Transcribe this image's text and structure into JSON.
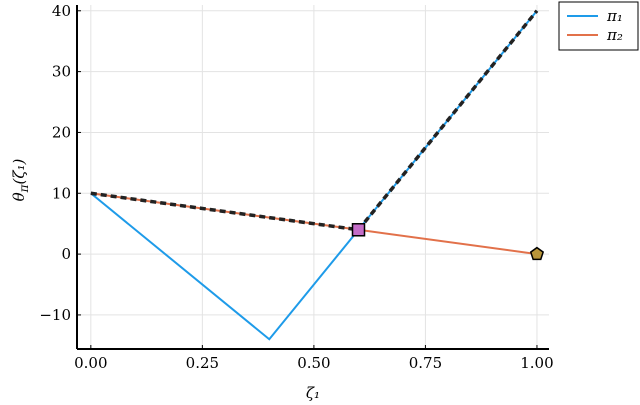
{
  "chart_data": {
    "type": "line",
    "xlabel": "ζ₁",
    "ylabel": {
      "base": "θ",
      "sub": "π",
      "arg": "(ζ₁)"
    },
    "xlim": [
      -0.031,
      1.027
    ],
    "ylim": [
      -15.6,
      40.95
    ],
    "xticks": [
      {
        "value": 0,
        "label": "0.00"
      },
      {
        "value": 0.25,
        "label": "0.25"
      },
      {
        "value": 0.5,
        "label": "0.50"
      },
      {
        "value": 0.75,
        "label": "0.75"
      },
      {
        "value": 1,
        "label": "1.00"
      }
    ],
    "yticks": [
      {
        "value": -10,
        "label": "−10"
      },
      0,
      10,
      20,
      30,
      40
    ],
    "grid": true,
    "legend": "top-right",
    "series": [
      {
        "name": "π₁",
        "color": "#1e9be9",
        "x": [
          0,
          0.4,
          0.6,
          1.0
        ],
        "values": [
          10,
          -14,
          4,
          40
        ]
      },
      {
        "name": "π₂",
        "color": "#e2714a",
        "x": [
          0,
          0.6,
          1.0
        ],
        "values": [
          10,
          4,
          0
        ]
      }
    ],
    "envelope": {
      "color": "#222222",
      "x": [
        0,
        0.6,
        1.0
      ],
      "values": [
        10,
        4,
        40
      ]
    },
    "markers": [
      {
        "shape": "square",
        "color": "#c46dc8",
        "x": 0.6,
        "y": 4
      },
      {
        "shape": "pentagon",
        "color": "#b8953a",
        "x": 1.0,
        "y": 0
      }
    ]
  }
}
